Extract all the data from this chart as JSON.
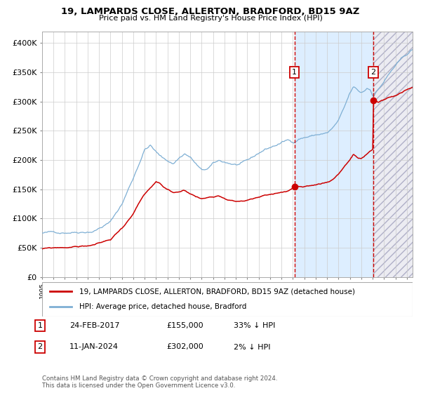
{
  "title": "19, LAMPARDS CLOSE, ALLERTON, BRADFORD, BD15 9AZ",
  "subtitle": "Price paid vs. HM Land Registry's House Price Index (HPI)",
  "legend_line1": "19, LAMPARDS CLOSE, ALLERTON, BRADFORD, BD15 9AZ (detached house)",
  "legend_line2": "HPI: Average price, detached house, Bradford",
  "annotation1_label": "1",
  "annotation1_date": "24-FEB-2017",
  "annotation1_price": "£155,000",
  "annotation1_pct": "33% ↓ HPI",
  "annotation1_year": 2017.13,
  "annotation1_value": 155000,
  "annotation2_label": "2",
  "annotation2_date": "11-JAN-2024",
  "annotation2_price": "£302,000",
  "annotation2_pct": "2% ↓ HPI",
  "annotation2_year": 2024.04,
  "annotation2_value": 302000,
  "footer": "Contains HM Land Registry data © Crown copyright and database right 2024.\nThis data is licensed under the Open Government Licence v3.0.",
  "line_property_color": "#cc0000",
  "line_hpi_color": "#7eafd4",
  "marker_color": "#cc0000",
  "dashed_line_color": "#cc0000",
  "bg_highlight_color": "#ddeeff",
  "ylim": [
    0,
    420000
  ],
  "xlim_start": 1995.0,
  "xlim_end": 2027.5
}
